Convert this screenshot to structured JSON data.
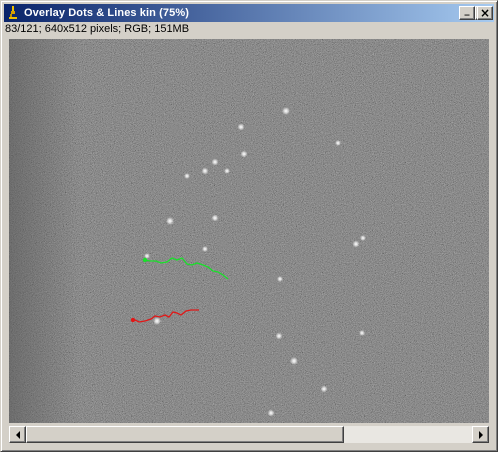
{
  "window": {
    "title": "Overlay Dots & Lines kin (75%)",
    "info_line": "83/121; 640x512 pixels; RGB; 151MB",
    "buttons": {
      "minimize": "_",
      "maximize": "□",
      "close": "×"
    }
  },
  "icons": {
    "app": "microscope-icon",
    "minimize": "minimize-icon",
    "maximize": "maximize-icon",
    "close": "close-icon",
    "scroll_left": "arrow-left-icon",
    "scroll_right": "arrow-right-icon"
  },
  "overlay_colors": {
    "track_1": "#19e02a",
    "track_2": "#e01818",
    "dots": "#ffffff",
    "titlebar_start": "#0a246a",
    "titlebar_end": "#a6caf0"
  },
  "scrollbar": {
    "position_fraction": 0.0,
    "visible_fraction": 0.71
  }
}
